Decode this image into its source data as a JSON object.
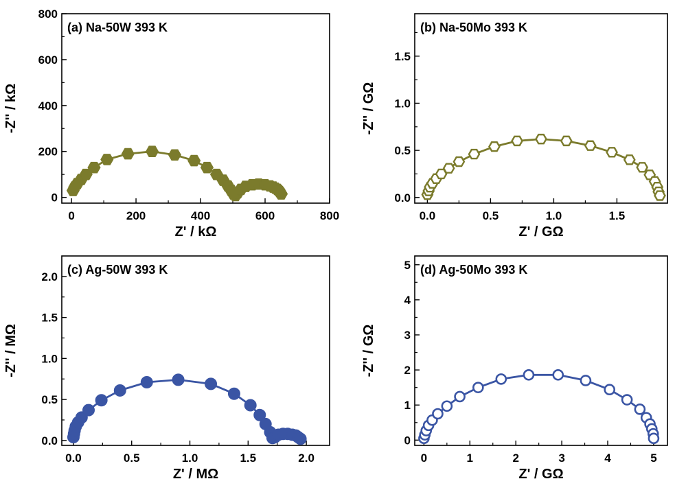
{
  "chart_data": [
    {
      "type": "scatter",
      "title": "(a) Na-50W 393 K",
      "xlabel": "Z' / kΩ",
      "ylabel": "-Z'' / kΩ",
      "xlim": [
        -30,
        800
      ],
      "ylim": [
        -25,
        800
      ],
      "xticks": [
        0,
        200,
        400,
        600,
        800
      ],
      "yticks": [
        0,
        200,
        400,
        600,
        800
      ],
      "color": "#7b7b2c",
      "marker": "filled-hexagon",
      "series": [
        {
          "x": [
            5,
            10,
            18,
            30,
            45,
            70,
            110,
            175,
            250,
            320,
            380,
            420,
            450,
            470,
            485,
            495,
            502,
            508,
            515,
            525,
            540,
            560,
            580,
            600,
            615,
            625,
            632,
            638,
            642,
            645,
            648,
            650
          ],
          "y": [
            30,
            45,
            60,
            78,
            100,
            130,
            165,
            190,
            200,
            185,
            160,
            130,
            100,
            75,
            50,
            30,
            15,
            8,
            20,
            35,
            48,
            55,
            58,
            55,
            50,
            45,
            40,
            35,
            30,
            25,
            20,
            15
          ]
        }
      ]
    },
    {
      "type": "scatter",
      "title": "(b) Na-50Mo 393 K",
      "xlabel": "Z' / GΩ",
      "ylabel": "-Z'' / GΩ",
      "xlim": [
        -0.1,
        1.9
      ],
      "ylim": [
        -0.06,
        1.95
      ],
      "xticks": [
        0.0,
        0.5,
        1.0,
        1.5
      ],
      "yticks": [
        0.0,
        0.5,
        1.0,
        1.5
      ],
      "color": "#7b7b2c",
      "marker": "open-hexagon",
      "series": [
        {
          "x": [
            0.0,
            0.01,
            0.02,
            0.04,
            0.07,
            0.11,
            0.17,
            0.25,
            0.37,
            0.53,
            0.71,
            0.9,
            1.1,
            1.29,
            1.46,
            1.6,
            1.7,
            1.76,
            1.8,
            1.82,
            1.83,
            1.84
          ],
          "y": [
            0.03,
            0.07,
            0.11,
            0.15,
            0.2,
            0.25,
            0.31,
            0.38,
            0.46,
            0.54,
            0.6,
            0.62,
            0.6,
            0.55,
            0.48,
            0.4,
            0.32,
            0.24,
            0.17,
            0.11,
            0.06,
            0.02
          ]
        }
      ]
    },
    {
      "type": "scatter",
      "title": "(c) Ag-50W 393 K",
      "xlabel": "Z' / MΩ",
      "ylabel": "-Z'' / MΩ",
      "xlim": [
        -0.1,
        2.2
      ],
      "ylim": [
        -0.06,
        2.25
      ],
      "xticks": [
        0.0,
        0.5,
        1.0,
        1.5,
        2.0
      ],
      "yticks": [
        0.0,
        0.5,
        1.0,
        1.5,
        2.0
      ],
      "color": "#3a55a4",
      "marker": "filled-circle",
      "series": [
        {
          "x": [
            0.0,
            0.005,
            0.01,
            0.02,
            0.04,
            0.07,
            0.13,
            0.24,
            0.4,
            0.63,
            0.9,
            1.18,
            1.38,
            1.52,
            1.6,
            1.65,
            1.69,
            1.71,
            1.73,
            1.76,
            1.8,
            1.84,
            1.88,
            1.91,
            1.93,
            1.95
          ],
          "y": [
            0.04,
            0.08,
            0.12,
            0.17,
            0.22,
            0.28,
            0.37,
            0.49,
            0.61,
            0.71,
            0.74,
            0.69,
            0.57,
            0.43,
            0.31,
            0.2,
            0.1,
            0.03,
            0.04,
            0.07,
            0.08,
            0.08,
            0.07,
            0.06,
            0.04,
            0.02
          ]
        }
      ]
    },
    {
      "type": "scatter",
      "title": "(d) Ag-50Mo 393 K",
      "xlabel": "Z' / GΩ",
      "ylabel": "-Z'' / GΩ",
      "xlim": [
        -0.2,
        5.3
      ],
      "ylim": [
        -0.15,
        5.25
      ],
      "xticks": [
        0,
        1,
        2,
        3,
        4,
        5
      ],
      "yticks": [
        0,
        1,
        2,
        3,
        4,
        5
      ],
      "color": "#3a55a4",
      "marker": "open-circle",
      "series": [
        {
          "x": [
            0.0,
            0.02,
            0.05,
            0.1,
            0.18,
            0.3,
            0.5,
            0.78,
            1.18,
            1.68,
            2.28,
            2.92,
            3.52,
            4.04,
            4.42,
            4.7,
            4.84,
            4.92,
            4.96,
            4.99,
            5.0
          ],
          "y": [
            0.05,
            0.15,
            0.27,
            0.42,
            0.57,
            0.75,
            0.97,
            1.24,
            1.5,
            1.74,
            1.86,
            1.86,
            1.7,
            1.44,
            1.15,
            0.88,
            0.64,
            0.46,
            0.32,
            0.18,
            0.05
          ]
        }
      ]
    }
  ]
}
